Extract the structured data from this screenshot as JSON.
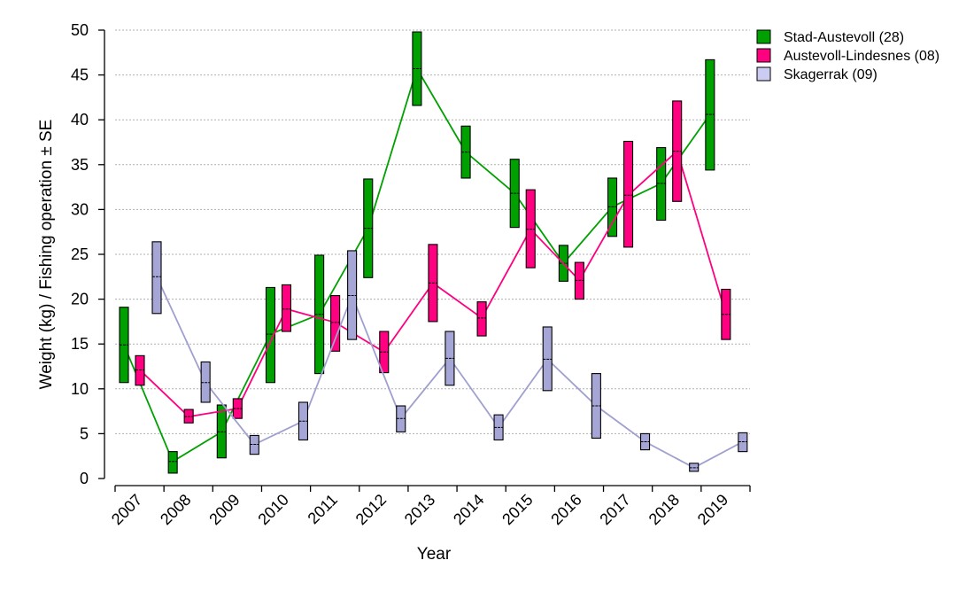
{
  "chart_data": {
    "type": "line",
    "subtype": "mean with ±SE boxes",
    "title": "",
    "xlabel": "Year",
    "ylabel": "Weight (kg) / Fishing operation ± SE",
    "ylim": [
      0,
      50
    ],
    "yticks": [
      0,
      5,
      10,
      15,
      20,
      25,
      30,
      35,
      40,
      45,
      50
    ],
    "grid": "horizontal dotted",
    "legend_position": "top-right outside",
    "categories": [
      "2007",
      "2008",
      "2009",
      "2010",
      "2011",
      "2012",
      "2013",
      "2014",
      "2015",
      "2016",
      "2017",
      "2018",
      "2019"
    ],
    "series": [
      {
        "name": "Stad-Austevoll (28)",
        "color": "#00a000",
        "mean": [
          14.9,
          1.9,
          5.2,
          16.1,
          18.3,
          27.9,
          45.7,
          36.4,
          31.8,
          24.0,
          30.3,
          32.9,
          40.6
        ],
        "upper": [
          19.1,
          3.0,
          8.2,
          21.3,
          24.9,
          33.4,
          49.8,
          39.3,
          35.6,
          26.0,
          33.5,
          36.9,
          46.7
        ],
        "lower": [
          10.7,
          0.6,
          2.3,
          10.7,
          11.7,
          22.4,
          41.6,
          33.5,
          28.0,
          22.0,
          27.0,
          28.8,
          34.4
        ]
      },
      {
        "name": "Austevoll-Lindesnes (08)",
        "color": "#ff0080",
        "mean": [
          12.1,
          6.9,
          7.8,
          18.9,
          17.4,
          14.1,
          21.8,
          17.9,
          27.8,
          22.1,
          31.6,
          36.5,
          18.3
        ],
        "upper": [
          13.7,
          7.7,
          8.9,
          21.6,
          20.4,
          16.4,
          26.1,
          19.7,
          32.2,
          24.1,
          37.6,
          42.1,
          21.1
        ],
        "lower": [
          10.4,
          6.2,
          6.7,
          16.4,
          14.2,
          11.8,
          17.5,
          15.9,
          23.5,
          20.0,
          25.8,
          30.9,
          15.5
        ]
      },
      {
        "name": "Skagerrak (09)",
        "color": "#a6a6d6",
        "legend_color": "#ccccf2",
        "mean": [
          22.5,
          10.7,
          3.8,
          6.4,
          20.4,
          6.7,
          13.4,
          5.7,
          13.3,
          8.1,
          4.1,
          1.2,
          4.1
        ],
        "upper": [
          26.4,
          13.0,
          4.8,
          8.5,
          25.4,
          8.1,
          16.4,
          7.1,
          16.9,
          11.7,
          5.0,
          1.7,
          5.1
        ],
        "lower": [
          18.4,
          8.5,
          2.7,
          4.3,
          15.5,
          5.2,
          10.4,
          4.3,
          9.8,
          4.5,
          3.2,
          0.8,
          3.0
        ]
      }
    ]
  }
}
